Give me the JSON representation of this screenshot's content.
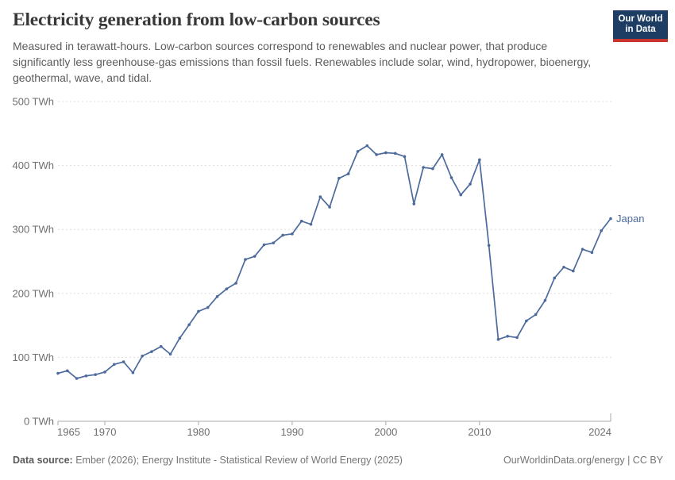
{
  "header": {
    "title": "Electricity generation from low-carbon sources",
    "subtitle": "Measured in terawatt-hours. Low-carbon sources correspond to renewables and nuclear power, that produce significantly less greenhouse-gas emissions than fossil fuels. Renewables include solar, wind, hydropower, bioenergy, geothermal, wave, and tidal.",
    "logo": {
      "line1": "Our World",
      "line2": "in Data"
    }
  },
  "chart_data": {
    "type": "line",
    "title": "Electricity generation from low-carbon sources",
    "unit": "TWh",
    "xlim": [
      1965,
      2024
    ],
    "ylim": [
      0,
      500
    ],
    "grid": "horizontal dashed",
    "legend": "end-of-line label",
    "x_ticks": [
      1965,
      1970,
      1980,
      1990,
      2000,
      2010,
      2024
    ],
    "y_ticks": [
      0,
      100,
      200,
      300,
      400,
      500
    ],
    "y_tick_labels": [
      "0 TWh",
      "100 TWh",
      "200 TWh",
      "300 TWh",
      "400 TWh",
      "500 TWh"
    ],
    "series": [
      {
        "name": "Japan",
        "color": "#4c6a9c",
        "x": [
          1965,
          1966,
          1967,
          1968,
          1969,
          1970,
          1971,
          1972,
          1973,
          1974,
          1975,
          1976,
          1977,
          1978,
          1979,
          1980,
          1981,
          1982,
          1983,
          1984,
          1985,
          1986,
          1987,
          1988,
          1989,
          1990,
          1991,
          1992,
          1993,
          1994,
          1995,
          1996,
          1997,
          1998,
          1999,
          2000,
          2001,
          2002,
          2003,
          2004,
          2005,
          2006,
          2007,
          2008,
          2009,
          2010,
          2011,
          2012,
          2013,
          2014,
          2015,
          2016,
          2017,
          2018,
          2019,
          2020,
          2021,
          2022,
          2023,
          2024
        ],
        "values": [
          75,
          79,
          67,
          71,
          73,
          77,
          89,
          93,
          76,
          102,
          109,
          117,
          105,
          130,
          151,
          172,
          178,
          195,
          207,
          216,
          253,
          258,
          276,
          279,
          291,
          293,
          313,
          308,
          351,
          335,
          380,
          387,
          422,
          431,
          417,
          420,
          419,
          414,
          340,
          397,
          395,
          417,
          381,
          354,
          371,
          409,
          275,
          128,
          133,
          131,
          157,
          167,
          189,
          224,
          241,
          235,
          269,
          264,
          298,
          317
        ]
      }
    ]
  },
  "footer": {
    "source_label": "Data source:",
    "source_text": " Ember (2026); Energy Institute - Statistical Review of World Energy (2025)",
    "attribution": "OurWorldinData.org/energy | CC BY"
  },
  "colors": {
    "line": "#4c6a9c",
    "grid": "#dedede",
    "axis": "#a8a8a8",
    "tick_label": "#6e6e6e",
    "logo_bg": "#1d3d63",
    "logo_stripe": "#c9342f"
  }
}
